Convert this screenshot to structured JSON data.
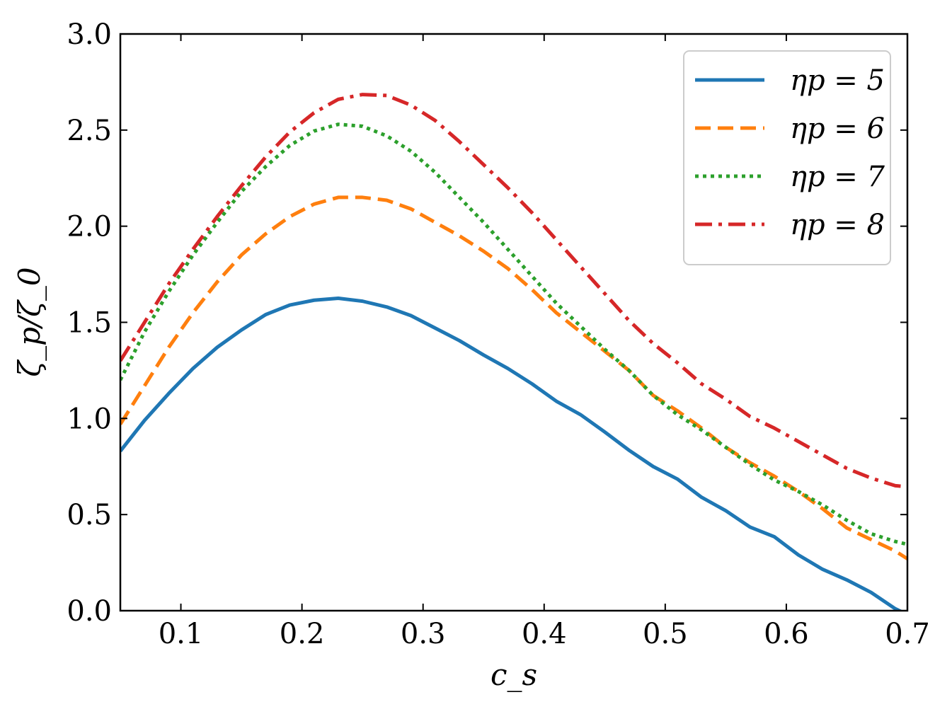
{
  "chart_data": {
    "type": "line",
    "title": "",
    "xlabel": "c_s",
    "ylabel": "ζ_p/ζ_0",
    "xlim": [
      0.05,
      0.7
    ],
    "ylim": [
      0.0,
      3.0
    ],
    "xticks": [
      0.1,
      0.2,
      0.3,
      0.4,
      0.5,
      0.6,
      0.7
    ],
    "xtick_labels": [
      "0.1",
      "0.2",
      "0.3",
      "0.4",
      "0.5",
      "0.6",
      "0.7"
    ],
    "yticks": [
      0.0,
      0.5,
      1.0,
      1.5,
      2.0,
      2.5,
      3.0
    ],
    "ytick_labels": [
      "0.0",
      "0.5",
      "1.0",
      "1.5",
      "2.0",
      "2.5",
      "3.0"
    ],
    "legend_position": "top-right",
    "series": [
      {
        "name": "ηp = 5",
        "color": "#1f77b4",
        "style": "solid",
        "x": [
          0.05,
          0.07,
          0.09,
          0.11,
          0.13,
          0.15,
          0.17,
          0.19,
          0.21,
          0.23,
          0.25,
          0.27,
          0.29,
          0.31,
          0.33,
          0.35,
          0.37,
          0.39,
          0.41,
          0.43,
          0.45,
          0.47,
          0.49,
          0.51,
          0.53,
          0.55,
          0.57,
          0.59,
          0.61,
          0.63,
          0.65,
          0.67,
          0.69,
          0.7
        ],
        "y": [
          0.83,
          0.99,
          1.13,
          1.26,
          1.37,
          1.46,
          1.54,
          1.59,
          1.615,
          1.625,
          1.61,
          1.58,
          1.535,
          1.47,
          1.405,
          1.33,
          1.26,
          1.18,
          1.09,
          1.02,
          0.93,
          0.835,
          0.75,
          0.685,
          0.59,
          0.52,
          0.435,
          0.385,
          0.29,
          0.215,
          0.16,
          0.095,
          0.01,
          -0.02
        ]
      },
      {
        "name": "ηp = 6",
        "color": "#ff7f0e",
        "style": "dashed",
        "x": [
          0.05,
          0.07,
          0.09,
          0.11,
          0.13,
          0.15,
          0.17,
          0.19,
          0.21,
          0.23,
          0.25,
          0.27,
          0.29,
          0.31,
          0.33,
          0.35,
          0.37,
          0.39,
          0.41,
          0.43,
          0.45,
          0.47,
          0.49,
          0.51,
          0.53,
          0.55,
          0.57,
          0.59,
          0.61,
          0.63,
          0.65,
          0.67,
          0.69,
          0.7
        ],
        "y": [
          0.97,
          1.17,
          1.37,
          1.55,
          1.71,
          1.85,
          1.96,
          2.05,
          2.115,
          2.15,
          2.15,
          2.135,
          2.09,
          2.02,
          1.95,
          1.87,
          1.78,
          1.67,
          1.55,
          1.45,
          1.35,
          1.25,
          1.12,
          1.04,
          0.95,
          0.85,
          0.77,
          0.7,
          0.62,
          0.53,
          0.43,
          0.37,
          0.31,
          0.27
        ]
      },
      {
        "name": "ηp = 7",
        "color": "#2ca02c",
        "style": "dotted",
        "x": [
          0.05,
          0.07,
          0.09,
          0.11,
          0.13,
          0.15,
          0.17,
          0.19,
          0.21,
          0.23,
          0.25,
          0.27,
          0.29,
          0.31,
          0.33,
          0.35,
          0.37,
          0.39,
          0.41,
          0.43,
          0.45,
          0.47,
          0.49,
          0.51,
          0.53,
          0.55,
          0.57,
          0.59,
          0.61,
          0.63,
          0.65,
          0.67,
          0.69,
          0.7
        ],
        "y": [
          1.2,
          1.45,
          1.66,
          1.85,
          2.02,
          2.18,
          2.31,
          2.42,
          2.495,
          2.53,
          2.52,
          2.47,
          2.39,
          2.28,
          2.15,
          2.02,
          1.88,
          1.74,
          1.6,
          1.48,
          1.36,
          1.25,
          1.12,
          1.02,
          0.94,
          0.85,
          0.76,
          0.68,
          0.62,
          0.55,
          0.47,
          0.4,
          0.36,
          0.345
        ]
      },
      {
        "name": "ηp = 8",
        "color": "#d62728",
        "style": "dashdot",
        "x": [
          0.05,
          0.07,
          0.09,
          0.11,
          0.13,
          0.15,
          0.17,
          0.19,
          0.21,
          0.23,
          0.25,
          0.27,
          0.29,
          0.31,
          0.33,
          0.35,
          0.37,
          0.39,
          0.41,
          0.43,
          0.45,
          0.47,
          0.49,
          0.51,
          0.53,
          0.55,
          0.57,
          0.59,
          0.61,
          0.63,
          0.65,
          0.67,
          0.69,
          0.7
        ],
        "y": [
          1.3,
          1.5,
          1.7,
          1.88,
          2.05,
          2.21,
          2.36,
          2.49,
          2.59,
          2.66,
          2.685,
          2.68,
          2.63,
          2.55,
          2.44,
          2.32,
          2.2,
          2.07,
          1.93,
          1.79,
          1.65,
          1.51,
          1.39,
          1.29,
          1.18,
          1.1,
          1.01,
          0.95,
          0.88,
          0.81,
          0.74,
          0.69,
          0.65,
          0.645
        ]
      }
    ]
  }
}
